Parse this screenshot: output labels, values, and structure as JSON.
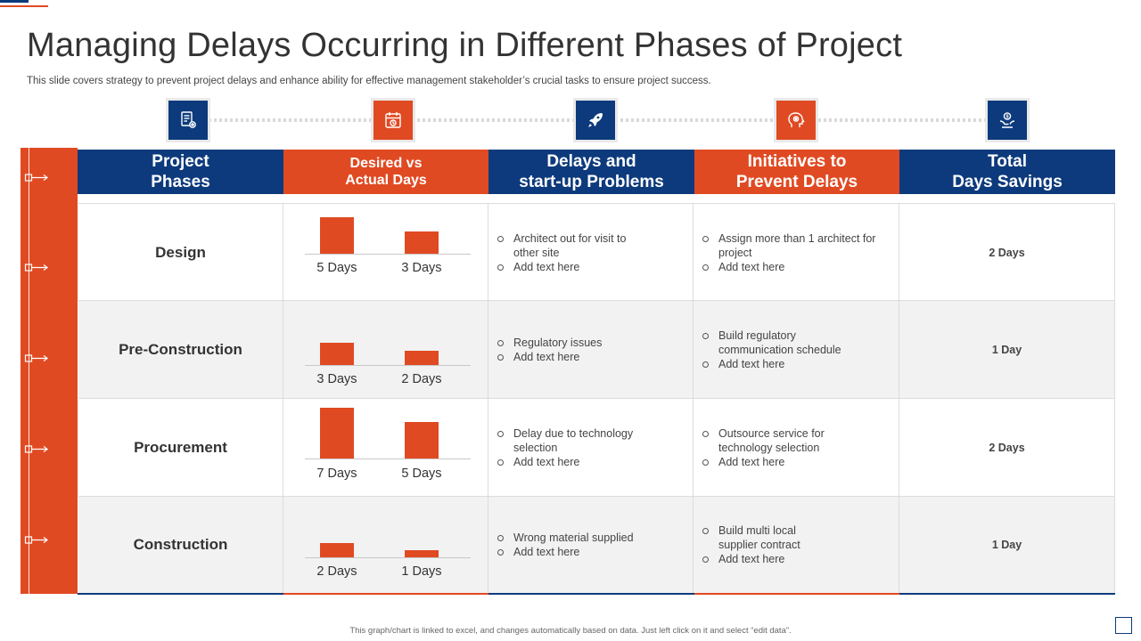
{
  "title": "Managing Delays Occurring in Different Phases of Project",
  "subtitle": "This slide covers strategy to prevent project delays and enhance ability for effective management stakeholder’s crucial tasks to ensure project success.",
  "icons": [
    "document-gear-icon",
    "calendar-icon",
    "rocket-icon",
    "head-gear-icon",
    "hand-coin-icon"
  ],
  "headers": {
    "phases": [
      "Project",
      "Phases"
    ],
    "desired": [
      "Desired vs",
      "Actual Days"
    ],
    "delays": [
      "Delays and",
      "start-up Problems"
    ],
    "initiatives": [
      "Initiatives to",
      "Prevent Delays"
    ],
    "savings": [
      "Total",
      "Days Savings"
    ]
  },
  "colors": {
    "blue": "#0d3a7c",
    "orange": "#e04a22"
  },
  "chart_data": {
    "type": "bar",
    "series": [
      {
        "values": [
          5,
          3,
          7,
          2
        ]
      },
      {
        "values": [
          3,
          2,
          5,
          1
        ]
      }
    ],
    "categories": [
      "Design",
      "Pre-Construction",
      "Procurement",
      "Construction"
    ]
  },
  "rows": [
    {
      "phase": "Design",
      "desired_label": "5 Days",
      "actual_label": "3 Days",
      "delays": [
        "Architect out for visit to other site",
        "Add text here"
      ],
      "initiatives": [
        "Assign more than 1 architect for project",
        "Add text here"
      ],
      "savings": "2 Days"
    },
    {
      "phase": "Pre-Construction",
      "desired_label": "3 Days",
      "actual_label": "2 Days",
      "delays": [
        "Regulatory issues",
        "Add text here"
      ],
      "initiatives": [
        "Build regulatory communication schedule",
        "Add text here"
      ],
      "savings": "1 Day"
    },
    {
      "phase": "Procurement",
      "desired_label": "7 Days",
      "actual_label": "5 Days",
      "delays": [
        "Delay due to technology selection",
        "Add text here"
      ],
      "initiatives": [
        "Outsource service for technology selection",
        "Add text here"
      ],
      "savings": "2 Days"
    },
    {
      "phase": "Construction",
      "desired_label": "2 Days",
      "actual_label": "1 Days",
      "delays": [
        "Wrong material supplied",
        "Add text here"
      ],
      "initiatives": [
        "Build multi local supplier contract",
        "Add text here"
      ],
      "savings": "1 Day"
    }
  ],
  "footnote": "This graph/chart is linked to excel, and changes automatically based on data. Just left click on it and select “edit data”."
}
